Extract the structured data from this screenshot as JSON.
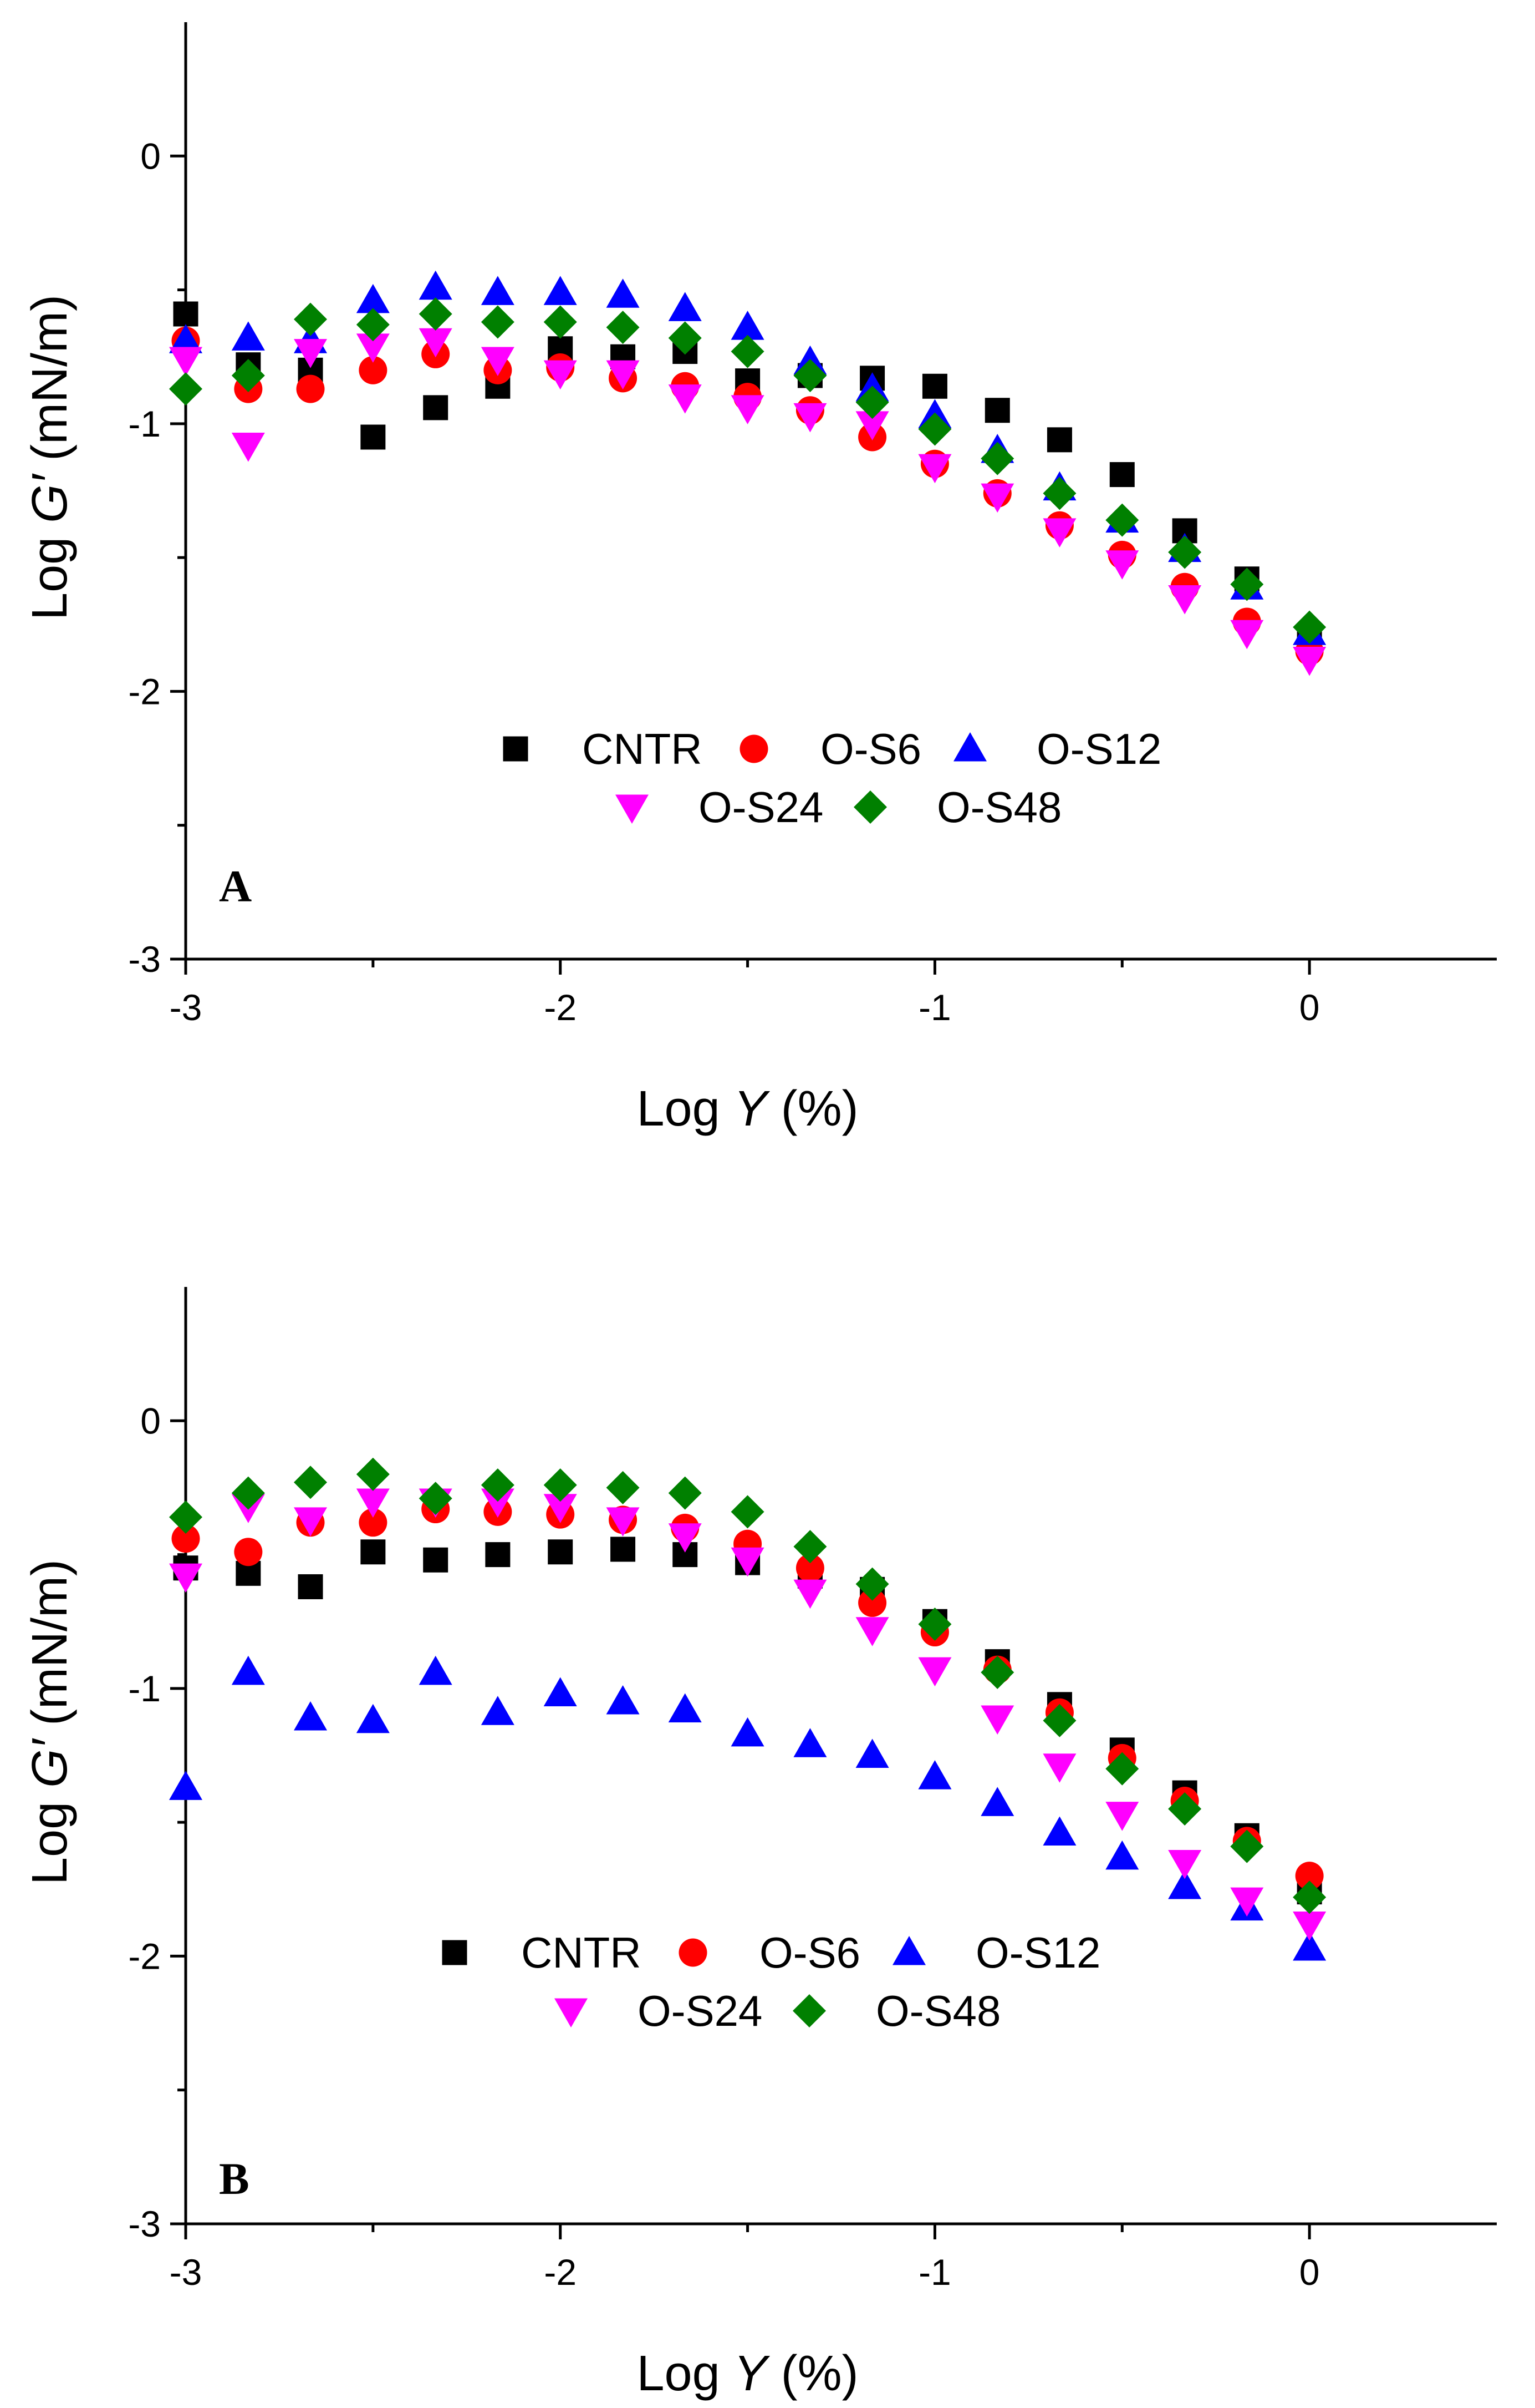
{
  "chart_data": [
    {
      "type": "scatter",
      "panel_label": "A",
      "xlabel": "Log Y (%)",
      "ylabel": "Log G′ (mN/m)",
      "xlabel_parts": {
        "prefix": "Log ",
        "var": "Y",
        "suffix": " (%)"
      },
      "ylabel_parts": {
        "prefix": "Log ",
        "var": "G′",
        "suffix": " (mN/m)"
      },
      "xlim": [
        -3,
        0.5
      ],
      "ylim": [
        -3,
        0.5
      ],
      "x_ticks": [
        -3,
        -2,
        -1,
        0
      ],
      "y_ticks": [
        -3,
        -2,
        -1,
        0
      ],
      "x_tick_labels": [
        "-3",
        "-2",
        "-1",
        "0"
      ],
      "y_tick_labels": [
        "-3",
        "-2",
        "-1",
        "0"
      ],
      "x": [
        -3,
        -2.833,
        -2.667,
        -2.5,
        -2.333,
        -2.167,
        -2,
        -1.833,
        -1.667,
        -1.5,
        -1.333,
        -1.167,
        -1,
        -0.833,
        -0.667,
        -0.5,
        -0.333,
        -0.167,
        0
      ],
      "legend_position": "bottom-center",
      "series": [
        {
          "name": "CNTR",
          "marker": "square",
          "color": "#000000",
          "values": [
            -0.59,
            -0.78,
            -0.8,
            -1.05,
            -0.94,
            -0.86,
            -0.72,
            -0.75,
            -0.73,
            -0.84,
            -0.82,
            -0.83,
            -0.86,
            -0.95,
            -1.06,
            -1.19,
            -1.4,
            -1.58,
            -1.8
          ]
        },
        {
          "name": "O-S6",
          "marker": "circle",
          "color": "#ff0000",
          "values": [
            -0.69,
            -0.87,
            -0.87,
            -0.8,
            -0.74,
            -0.8,
            -0.79,
            -0.83,
            -0.86,
            -0.9,
            -0.95,
            -1.05,
            -1.15,
            -1.26,
            -1.38,
            -1.49,
            -1.61,
            -1.74,
            -1.85
          ]
        },
        {
          "name": "O-S12",
          "marker": "triangle-up",
          "color": "#0000ff",
          "values": [
            -0.69,
            -0.68,
            -0.69,
            -0.54,
            -0.49,
            -0.51,
            -0.51,
            -0.52,
            -0.57,
            -0.64,
            -0.77,
            -0.87,
            -0.97,
            -1.1,
            -1.24,
            -1.36,
            -1.47,
            -1.61,
            -1.78
          ]
        },
        {
          "name": "O-S24",
          "marker": "triangle-down",
          "color": "#ff00ff",
          "values": [
            -0.76,
            -1.08,
            -0.73,
            -0.71,
            -0.69,
            -0.76,
            -0.81,
            -0.81,
            -0.9,
            -0.94,
            -0.97,
            -1.0,
            -1.16,
            -1.27,
            -1.4,
            -1.52,
            -1.65,
            -1.78,
            -1.88
          ]
        },
        {
          "name": "O-S48",
          "marker": "diamond",
          "color": "#008000",
          "values": [
            -0.87,
            -0.82,
            -0.61,
            -0.63,
            -0.59,
            -0.62,
            -0.62,
            -0.64,
            -0.68,
            -0.73,
            -0.82,
            -0.92,
            -1.02,
            -1.13,
            -1.26,
            -1.36,
            -1.48,
            -1.6,
            -1.76
          ]
        }
      ]
    },
    {
      "type": "scatter",
      "panel_label": "B",
      "xlabel": "Log Y (%)",
      "ylabel": "Log G′ (mN/m)",
      "xlabel_parts": {
        "prefix": "Log ",
        "var": "Y",
        "suffix": " (%)"
      },
      "ylabel_parts": {
        "prefix": "Log ",
        "var": "G′",
        "suffix": " (mN/m)"
      },
      "xlim": [
        -3,
        0.5
      ],
      "ylim": [
        -3,
        0.5
      ],
      "x_ticks": [
        -3,
        -2,
        -1,
        0
      ],
      "y_ticks": [
        -3,
        -2,
        -1,
        0
      ],
      "x_tick_labels": [
        "-3",
        "-2",
        "-1",
        "0"
      ],
      "y_tick_labels": [
        "-3",
        "-2",
        "-1",
        "0"
      ],
      "x": [
        -3,
        -2.833,
        -2.667,
        -2.5,
        -2.333,
        -2.167,
        -2,
        -1.833,
        -1.667,
        -1.5,
        -1.333,
        -1.167,
        -1,
        -0.833,
        -0.667,
        -0.5,
        -0.333,
        -0.167,
        0
      ],
      "legend_position": "bottom-center",
      "series": [
        {
          "name": "CNTR",
          "marker": "square",
          "color": "#000000",
          "values": [
            -0.55,
            -0.57,
            -0.62,
            -0.49,
            -0.52,
            -0.5,
            -0.49,
            -0.48,
            -0.5,
            -0.53,
            -0.58,
            -0.63,
            -0.75,
            -0.9,
            -1.06,
            -1.23,
            -1.39,
            -1.55,
            -1.76
          ]
        },
        {
          "name": "O-S6",
          "marker": "circle",
          "color": "#ff0000",
          "values": [
            -0.44,
            -0.49,
            -0.38,
            -0.38,
            -0.33,
            -0.34,
            -0.35,
            -0.37,
            -0.4,
            -0.46,
            -0.55,
            -0.68,
            -0.79,
            -0.93,
            -1.09,
            -1.26,
            -1.42,
            -1.57,
            -1.7
          ]
        },
        {
          "name": "O-S12",
          "marker": "triangle-up",
          "color": "#0000ff",
          "values": [
            -1.37,
            -0.94,
            -1.11,
            -1.12,
            -0.94,
            -1.09,
            -1.02,
            -1.05,
            -1.08,
            -1.17,
            -1.21,
            -1.25,
            -1.33,
            -1.43,
            -1.54,
            -1.63,
            -1.74,
            -1.82,
            -1.97
          ]
        },
        {
          "name": "O-S24",
          "marker": "triangle-down",
          "color": "#ff00ff",
          "values": [
            -0.58,
            -0.32,
            -0.37,
            -0.3,
            -0.3,
            -0.3,
            -0.32,
            -0.37,
            -0.43,
            -0.52,
            -0.64,
            -0.78,
            -0.93,
            -1.11,
            -1.29,
            -1.47,
            -1.65,
            -1.79,
            -1.88
          ]
        },
        {
          "name": "O-S48",
          "marker": "diamond",
          "color": "#008000",
          "values": [
            -0.36,
            -0.27,
            -0.23,
            -0.2,
            -0.29,
            -0.24,
            -0.24,
            -0.25,
            -0.27,
            -0.34,
            -0.47,
            -0.61,
            -0.76,
            -0.94,
            -1.12,
            -1.3,
            -1.45,
            -1.59,
            -1.78
          ]
        }
      ]
    }
  ]
}
